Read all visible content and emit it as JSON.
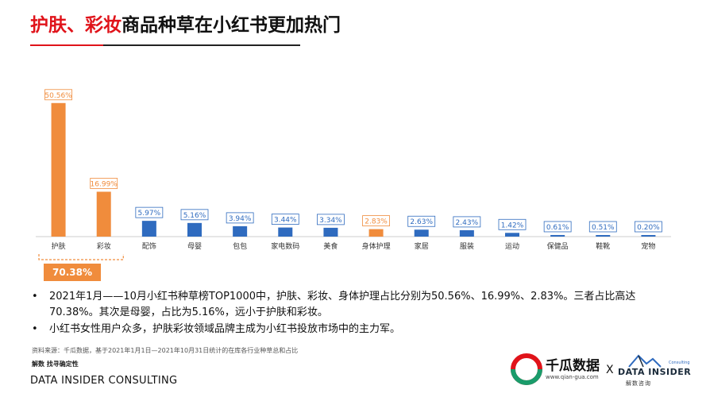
{
  "title": {
    "highlight": "护肤、彩妆",
    "rest": "商品种草在小红书更加热门"
  },
  "chart_data": {
    "type": "bar",
    "categories": [
      "护肤",
      "彩妆",
      "配饰",
      "母婴",
      "包包",
      "家电数码",
      "美食",
      "身体护理",
      "家居",
      "服装",
      "运动",
      "保健品",
      "鞋靴",
      "宠物"
    ],
    "values": [
      50.56,
      16.99,
      5.97,
      5.16,
      3.94,
      3.44,
      3.34,
      2.83,
      2.63,
      2.43,
      1.42,
      0.61,
      0.51,
      0.2
    ],
    "value_labels": [
      "50.56%",
      "16.99%",
      "5.97%",
      "5.16%",
      "3.94%",
      "3.44%",
      "3.34%",
      "2.83%",
      "2.63%",
      "2.43%",
      "1.42%",
      "0.61%",
      "0.51%",
      "0.20%"
    ],
    "highlighted": [
      0,
      1,
      7
    ],
    "colors": {
      "highlight": "#f08c3c",
      "normal": "#2f6bbf",
      "axis": "#cccccc",
      "bracket": "#f08c3c"
    },
    "ylim": [
      0,
      55
    ],
    "grid": false,
    "total_label": "70.38%"
  },
  "bullets": [
    "2021年1月——10月小红书种草榜TOP1000中，护肤、彩妆、身体护理占比分别为50.56%、16.99%、2.83%。三者占比高达70.38%。其次是母婴，占比为5.16%，远小于护肤和彩妆。",
    "小红书女性用户众多，护肤彩妆领域品牌主成为小红书投放市场中的主力军。"
  ],
  "bullet_glyph": "•",
  "source": "资料来源：千瓜数据，基于2021年1月1日—2021年10月31日统计的在库各行业种草总和占比",
  "slogan": "解数 找寻确定性",
  "footer_brand": "DATA INSIDER CONSULTING",
  "logos": {
    "qiangua_name": "千瓜数据",
    "qiangua_url": "www.qian-gua.com",
    "separator": "X",
    "datainsider_name": "DATA INSIDER",
    "datainsider_cn": "解数咨询",
    "datainsider_tiny": "Consulting"
  }
}
